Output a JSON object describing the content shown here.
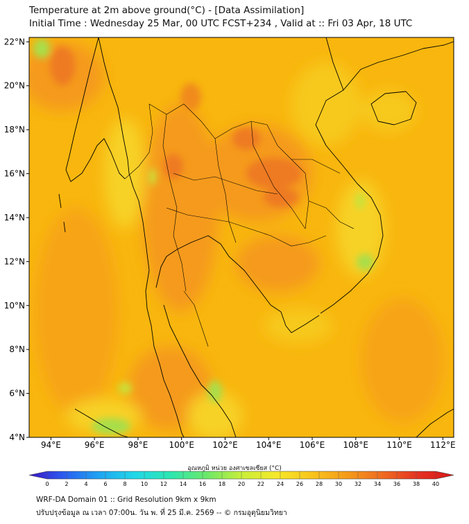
{
  "title": {
    "line1": "Temperature at 2m above ground(°C) - [Data Assimilation]",
    "line2": "Initial Time : Wednesday 25 Mar, 00 UTC FCST+234 , Valid at :: Fri 03 Apr, 18 UTC"
  },
  "map": {
    "lon_ticks": [
      "94°E",
      "96°E",
      "98°E",
      "100°E",
      "102°E",
      "104°E",
      "106°E",
      "108°E",
      "110°E",
      "112°E"
    ],
    "lat_ticks": [
      "22°N",
      "20°N",
      "18°N",
      "16°N",
      "14°N",
      "12°N",
      "10°N",
      "8°N",
      "6°N",
      "4°N"
    ],
    "lon_range": [
      93,
      112.5
    ],
    "lat_range": [
      4,
      22.2
    ],
    "field": "2m temperature",
    "colors": {
      "background": "#F8B60E",
      "warm": "#F59A1A",
      "hot": "#EE7A22",
      "cool": "#F7D226",
      "cold": "#A9DE4A",
      "coast": "#000000"
    }
  },
  "colorbar": {
    "label": "อุณหภูมิ หน่วย องศาเซลเซียส (°C)",
    "ticks": [
      "0",
      "2",
      "4",
      "6",
      "8",
      "10",
      "12",
      "14",
      "16",
      "18",
      "20",
      "22",
      "24",
      "26",
      "28",
      "30",
      "32",
      "34",
      "36",
      "38",
      "40"
    ],
    "min": 0,
    "max": 40,
    "colors": [
      "#3C16C8",
      "#2B5EF0",
      "#1FA6F2",
      "#22D8E8",
      "#2CE6B0",
      "#6AE86A",
      "#C8EE3A",
      "#F6E82A",
      "#F8C41C",
      "#F59A1A",
      "#EE6A20",
      "#E43222",
      "#D81616"
    ]
  },
  "footer": {
    "line1": "WRF-DA Domain 01 :: Grid Resolution 9km x 9km",
    "line2": "ปรับปรุงข้อมูล ณ เวลา 07:00น. วัน พ. ที่ 25 มี.ค. 2569 -- © กรมอุตุนิยมวิทยา"
  }
}
